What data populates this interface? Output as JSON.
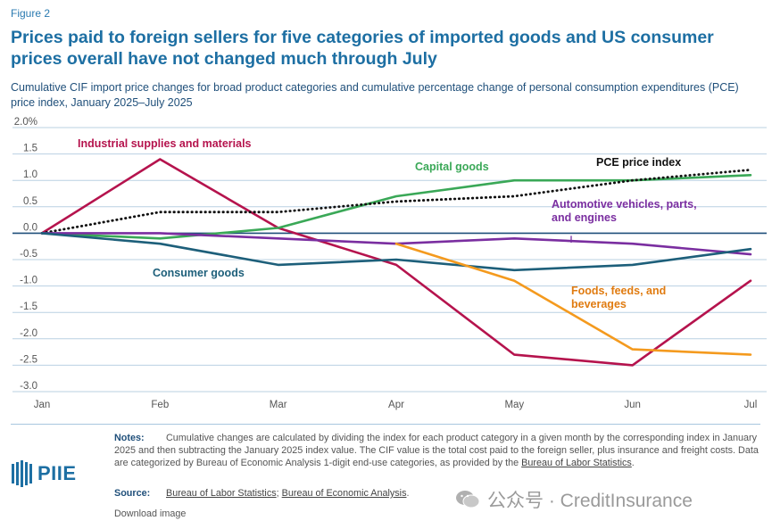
{
  "header": {
    "figure_label": "Figure 2",
    "title": "Prices paid to foreign sellers for five categories of imported goods and US consumer prices overall have not changed much through July",
    "subtitle": "Cumulative CIF import price changes for broad product categories and cumulative percentage change of personal consumption expenditures (PCE) price index, January 2025–July 2025"
  },
  "chart_data": {
    "type": "line",
    "categories": [
      "Jan",
      "Feb",
      "Mar",
      "Apr",
      "May",
      "Jun",
      "Jul"
    ],
    "y_tick_labels": [
      "2.0%",
      "1.5",
      "1.0",
      "0.5",
      "0.0",
      "-0.5",
      "-1.0",
      "-1.5",
      "-2.0",
      "-2.5",
      "-3.0"
    ],
    "ylim": [
      -3.0,
      2.0
    ],
    "grid": true,
    "series": [
      {
        "name": "Industrial supplies and materials",
        "color": "#b5134d",
        "style": "solid",
        "values": [
          0.0,
          1.4,
          0.1,
          -0.6,
          -2.3,
          -2.5,
          -0.9
        ]
      },
      {
        "name": "Capital goods",
        "color": "#3aa857",
        "style": "solid",
        "values": [
          0.0,
          -0.1,
          0.1,
          0.7,
          1.0,
          1.0,
          1.1
        ]
      },
      {
        "name": "PCE price index",
        "color": "#111111",
        "style": "dotted",
        "values": [
          0.0,
          0.4,
          0.4,
          0.6,
          0.7,
          1.0,
          1.2
        ]
      },
      {
        "name": "Automotive vehicles, parts, and engines",
        "color": "#7a2ea0",
        "style": "solid",
        "values": [
          0.0,
          0.0,
          -0.1,
          -0.2,
          -0.1,
          -0.2,
          -0.4
        ]
      },
      {
        "name": "Consumer goods",
        "color": "#1d5f7a",
        "style": "solid",
        "values": [
          0.0,
          -0.2,
          -0.6,
          -0.5,
          -0.7,
          -0.6,
          -0.3
        ]
      },
      {
        "name": "Foods, feeds, and beverages",
        "color": "#f49a1e",
        "style": "solid",
        "values": [
          null,
          null,
          null,
          -0.2,
          -0.9,
          -2.2,
          -2.3
        ]
      }
    ],
    "annotations": [
      {
        "series": 0,
        "lines": [
          "Industrial supplies and materials"
        ],
        "color": "#b5134d"
      },
      {
        "series": 1,
        "lines": [
          "Capital goods"
        ],
        "color": "#3aa857"
      },
      {
        "series": 2,
        "lines": [
          "PCE price index"
        ],
        "color": "#111111"
      },
      {
        "series": 3,
        "lines": [
          "Automotive vehicles, parts,",
          "and engines"
        ],
        "color": "#7a2ea0"
      },
      {
        "series": 4,
        "lines": [
          "Consumer goods"
        ],
        "color": "#1d5f7a"
      },
      {
        "series": 5,
        "lines": [
          "Foods, feeds, and",
          "beverages"
        ],
        "color": "#e07b10"
      }
    ]
  },
  "footer": {
    "notes_label": "Notes:",
    "notes_text": "Cumulative changes are calculated by dividing the index for each product category in a given month by the corresponding index in January 2025 and then subtracting the January 2025 index value. The CIF value is the total cost paid to the foreign seller, plus insurance and freight costs. Data are categorized by Bureau of Economic Analysis 1-digit end-use categories, as provided by the",
    "notes_link": "Bureau of Labor Statistics",
    "notes_end": ".",
    "source_label": "Source:",
    "source_link_1": "Bureau of Labor Statistics",
    "source_sep": "; ",
    "source_link_2": "Bureau of Economic Analysis",
    "source_end": ".",
    "download": "Download image",
    "logo_text": "PIIE",
    "watermark": "公众号 · CreditInsurance"
  }
}
